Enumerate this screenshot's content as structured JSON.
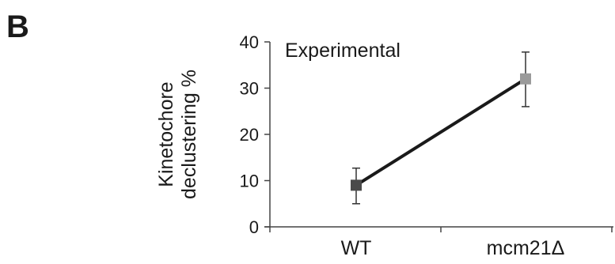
{
  "panel_label": "B",
  "chart_data": {
    "type": "line",
    "categories": [
      "WT",
      "mcm21Δ"
    ],
    "series": [
      {
        "values": [
          9,
          32
        ],
        "error": [
          [
            5,
            12.7
          ],
          [
            26,
            37.8
          ]
        ],
        "marker_colors": [
          "#4a4a4a",
          "#9a9a9a"
        ]
      }
    ],
    "ylabel": [
      "Kinetochore",
      "declustering %"
    ],
    "annotation": "Experimental",
    "ylim": [
      0,
      40
    ],
    "yticks": [
      0,
      10,
      20,
      30,
      40
    ],
    "grid": false,
    "line_color": "#1a1a1a"
  }
}
